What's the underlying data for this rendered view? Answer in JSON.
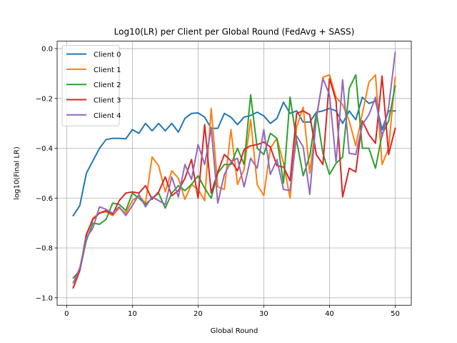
{
  "chart_data": {
    "type": "line",
    "title": "Log10(LR) per Client per Global Round (FedAvg + SASS)",
    "xlabel": "Global Round",
    "ylabel": "log10(Final LR)",
    "xlim": [
      -1.45,
      52.45
    ],
    "ylim": [
      -1.03,
      0.03
    ],
    "xticks": [
      0,
      10,
      20,
      30,
      40,
      50
    ],
    "yticks": [
      -1.0,
      -0.8,
      -0.6,
      -0.4,
      -0.2,
      0.0
    ],
    "xtick_labels": [
      "0",
      "10",
      "20",
      "30",
      "40",
      "50"
    ],
    "ytick_labels": [
      "−1.0",
      "−0.8",
      "−0.6",
      "−0.4",
      "−0.2",
      "0.0"
    ],
    "grid": true,
    "legend_position": "upper-left",
    "x": [
      1,
      2,
      3,
      4,
      5,
      6,
      7,
      8,
      9,
      10,
      11,
      12,
      13,
      14,
      15,
      16,
      17,
      18,
      19,
      20,
      21,
      22,
      23,
      24,
      25,
      26,
      27,
      28,
      29,
      30,
      31,
      32,
      33,
      34,
      35,
      36,
      37,
      38,
      39,
      40,
      41,
      42,
      43,
      44,
      45,
      46,
      47,
      48,
      49,
      50
    ],
    "series": [
      {
        "name": "Client 0",
        "color": "#1f77b4",
        "values": [
          -0.67,
          -0.63,
          -0.5,
          -0.45,
          -0.4,
          -0.365,
          -0.36,
          -0.36,
          -0.362,
          -0.325,
          -0.34,
          -0.3,
          -0.33,
          -0.3,
          -0.33,
          -0.3,
          -0.335,
          -0.28,
          -0.26,
          -0.258,
          -0.275,
          -0.32,
          -0.32,
          -0.26,
          -0.275,
          -0.305,
          -0.275,
          -0.268,
          -0.255,
          -0.27,
          -0.3,
          -0.28,
          -0.215,
          -0.26,
          -0.25,
          -0.295,
          -0.295,
          -0.255,
          -0.25,
          -0.24,
          -0.25,
          -0.3,
          -0.25,
          -0.285,
          -0.195,
          -0.22,
          -0.21,
          -0.325,
          -0.25,
          -0.25
        ]
      },
      {
        "name": "Client 1",
        "color": "#ff7f0e",
        "values": [
          -0.96,
          -0.89,
          -0.75,
          -0.68,
          -0.66,
          -0.655,
          -0.67,
          -0.64,
          -0.66,
          -0.61,
          -0.59,
          -0.62,
          -0.435,
          -0.47,
          -0.575,
          -0.49,
          -0.52,
          -0.605,
          -0.545,
          -0.565,
          -0.61,
          -0.24,
          -0.555,
          -0.565,
          -0.325,
          -0.545,
          -0.485,
          -0.285,
          -0.545,
          -0.59,
          -0.4,
          -0.36,
          -0.46,
          -0.6,
          -0.315,
          -0.235,
          -0.5,
          -0.285,
          -0.115,
          -0.105,
          -0.195,
          -0.225,
          -0.29,
          -0.39,
          -0.26,
          -0.135,
          -0.105,
          -0.465,
          -0.4,
          -0.115
        ]
      },
      {
        "name": "Client 2",
        "color": "#2ca02c",
        "values": [
          -0.92,
          -0.89,
          -0.77,
          -0.7,
          -0.705,
          -0.685,
          -0.62,
          -0.625,
          -0.65,
          -0.58,
          -0.6,
          -0.625,
          -0.6,
          -0.58,
          -0.64,
          -0.58,
          -0.55,
          -0.57,
          -0.545,
          -0.51,
          -0.56,
          -0.6,
          -0.5,
          -0.465,
          -0.465,
          -0.4,
          -0.465,
          -0.185,
          -0.4,
          -0.425,
          -0.34,
          -0.36,
          -0.54,
          -0.195,
          -0.37,
          -0.51,
          -0.43,
          -0.255,
          -0.42,
          -0.505,
          -0.46,
          -0.435,
          -0.16,
          -0.105,
          -0.4,
          -0.4,
          -0.48,
          -0.345,
          -0.29,
          -0.15
        ]
      },
      {
        "name": "Client 3",
        "color": "#d62728",
        "values": [
          -0.96,
          -0.89,
          -0.745,
          -0.685,
          -0.66,
          -0.65,
          -0.665,
          -0.61,
          -0.58,
          -0.575,
          -0.58,
          -0.55,
          -0.605,
          -0.575,
          -0.515,
          -0.59,
          -0.57,
          -0.52,
          -0.445,
          -0.6,
          -0.305,
          -0.58,
          -0.495,
          -0.425,
          -0.45,
          -0.49,
          -0.405,
          -0.39,
          -0.385,
          -0.375,
          -0.395,
          -0.47,
          -0.475,
          -0.53,
          -0.26,
          -0.25,
          -0.265,
          -0.425,
          -0.465,
          -0.12,
          -0.21,
          -0.595,
          -0.48,
          -0.495,
          -0.29,
          -0.345,
          -0.38,
          -0.11,
          -0.425,
          -0.32
        ]
      },
      {
        "name": "Client 4",
        "color": "#9467bd",
        "values": [
          -0.94,
          -0.88,
          -0.76,
          -0.72,
          -0.635,
          -0.645,
          -0.66,
          -0.635,
          -0.67,
          -0.63,
          -0.585,
          -0.635,
          -0.595,
          -0.61,
          -0.625,
          -0.515,
          -0.595,
          -0.465,
          -0.525,
          -0.385,
          -0.465,
          -0.32,
          -0.62,
          -0.505,
          -0.455,
          -0.44,
          -0.555,
          -0.44,
          -0.48,
          -0.325,
          -0.505,
          -0.445,
          -0.565,
          -0.57,
          -0.35,
          -0.395,
          -0.585,
          -0.275,
          -0.12,
          -0.185,
          -0.455,
          -0.125,
          -0.42,
          -0.425,
          -0.305,
          -0.265,
          -0.195,
          -0.355,
          -0.235,
          -0.015
        ]
      }
    ]
  }
}
